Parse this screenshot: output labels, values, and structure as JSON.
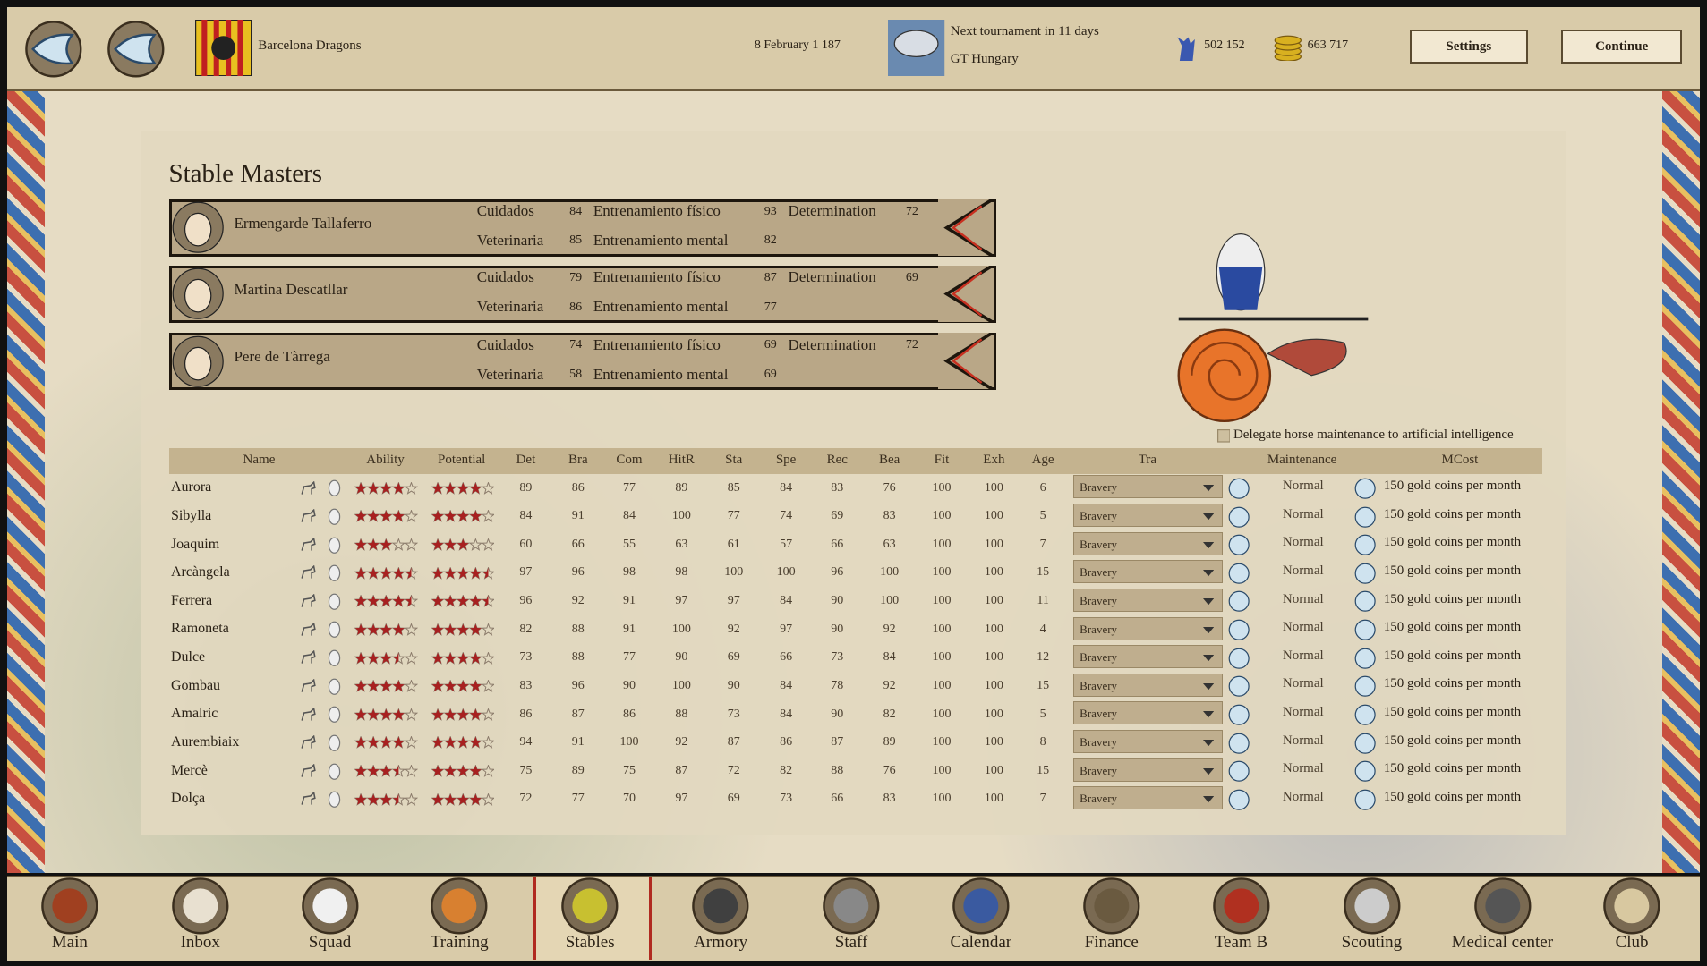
{
  "header": {
    "team": "Barcelona Dragons",
    "date": "8 February 1 187",
    "next_tournament": "Next tournament in 11 days",
    "tournament_name": "GT Hungary",
    "fans": "502 152",
    "gold": "663 717",
    "buttons": [
      "Settings",
      "Continue"
    ]
  },
  "stable_masters": {
    "title": "Stable Masters",
    "masters": [
      {
        "name": "Ermengarde Tallaferro",
        "stats": [
          {
            "label": "Cuidados",
            "value": 84
          },
          {
            "label": "Entrenamiento físico",
            "value": 93
          },
          {
            "label": "Determination",
            "value": 72
          },
          {
            "label": "Veterinaria",
            "value": 85
          },
          {
            "label": "Entrenamiento mental",
            "value": 82
          }
        ]
      },
      {
        "name": "Martina Descatllar",
        "stats": [
          {
            "label": "Cuidados",
            "value": 79
          },
          {
            "label": "Entrenamiento físico",
            "value": 87
          },
          {
            "label": "Determination",
            "value": 69
          },
          {
            "label": "Veterinaria",
            "value": 86
          },
          {
            "label": "Entrenamiento mental",
            "value": 77
          }
        ]
      },
      {
        "name": "Pere de Tàrrega",
        "stats": [
          {
            "label": "Cuidados",
            "value": 74
          },
          {
            "label": "Entrenamiento físico",
            "value": 69
          },
          {
            "label": "Determination",
            "value": 72
          },
          {
            "label": "Veterinaria",
            "value": 58
          },
          {
            "label": "Entrenamiento mental",
            "value": 69
          }
        ]
      }
    ]
  },
  "ai_delegate": "Delegate horse maintenance to artificial intelligence",
  "table": {
    "columns": [
      "Name",
      "Ability",
      "Potential",
      "Det",
      "Bra",
      "Com",
      "HitR",
      "Sta",
      "Spe",
      "Rec",
      "Bea",
      "Fit",
      "Exh",
      "Age",
      "Tra",
      "Maintenance",
      "MCost"
    ],
    "rows": [
      {
        "name": "Aurora",
        "ability": 4,
        "potential": 4,
        "stats": [
          89,
          86,
          77,
          89,
          85,
          84,
          83,
          76,
          100,
          100,
          6
        ],
        "training": "Bravery",
        "maintenance": "Normal",
        "cost": "150 gold coins per month"
      },
      {
        "name": "Sibylla",
        "ability": 4,
        "potential": 4,
        "stats": [
          84,
          91,
          84,
          100,
          77,
          74,
          69,
          83,
          100,
          100,
          5
        ],
        "training": "Bravery",
        "maintenance": "Normal",
        "cost": "150 gold coins per month"
      },
      {
        "name": "Joaquim",
        "ability": 3,
        "potential": 3,
        "stats": [
          60,
          66,
          55,
          63,
          61,
          57,
          66,
          63,
          100,
          100,
          7
        ],
        "training": "Bravery",
        "maintenance": "Normal",
        "cost": "150 gold coins per month"
      },
      {
        "name": "Arcàngela",
        "ability": 4.5,
        "potential": 4.5,
        "stats": [
          97,
          96,
          98,
          98,
          100,
          100,
          96,
          100,
          100,
          100,
          15
        ],
        "training": "Bravery",
        "maintenance": "Normal",
        "cost": "150 gold coins per month"
      },
      {
        "name": "Ferrera",
        "ability": 4.5,
        "potential": 4.5,
        "stats": [
          96,
          92,
          91,
          97,
          97,
          84,
          90,
          100,
          100,
          100,
          11
        ],
        "training": "Bravery",
        "maintenance": "Normal",
        "cost": "150 gold coins per month"
      },
      {
        "name": "Ramoneta",
        "ability": 4,
        "potential": 4,
        "stats": [
          82,
          88,
          91,
          100,
          92,
          97,
          90,
          92,
          100,
          100,
          4
        ],
        "training": "Bravery",
        "maintenance": "Normal",
        "cost": "150 gold coins per month"
      },
      {
        "name": "Dulce",
        "ability": 3.5,
        "potential": 4,
        "stats": [
          73,
          88,
          77,
          90,
          69,
          66,
          73,
          84,
          100,
          100,
          12
        ],
        "training": "Bravery",
        "maintenance": "Normal",
        "cost": "150 gold coins per month"
      },
      {
        "name": "Gombau",
        "ability": 4,
        "potential": 4,
        "stats": [
          83,
          96,
          90,
          100,
          90,
          84,
          78,
          92,
          100,
          100,
          15
        ],
        "training": "Bravery",
        "maintenance": "Normal",
        "cost": "150 gold coins per month"
      },
      {
        "name": "Amalric",
        "ability": 4,
        "potential": 4,
        "stats": [
          86,
          87,
          86,
          88,
          73,
          84,
          90,
          82,
          100,
          100,
          5
        ],
        "training": "Bravery",
        "maintenance": "Normal",
        "cost": "150 gold coins per month"
      },
      {
        "name": "Aurembiaix",
        "ability": 4,
        "potential": 4,
        "stats": [
          94,
          91,
          100,
          92,
          87,
          86,
          87,
          89,
          100,
          100,
          8
        ],
        "training": "Bravery",
        "maintenance": "Normal",
        "cost": "150 gold coins per month"
      },
      {
        "name": "Mercè",
        "ability": 3.5,
        "potential": 4,
        "stats": [
          75,
          89,
          75,
          87,
          72,
          82,
          88,
          76,
          100,
          100,
          15
        ],
        "training": "Bravery",
        "maintenance": "Normal",
        "cost": "150 gold coins per month"
      },
      {
        "name": "Dolça",
        "ability": 3.5,
        "potential": 4,
        "stats": [
          72,
          77,
          70,
          97,
          69,
          73,
          66,
          83,
          100,
          100,
          7
        ],
        "training": "Bravery",
        "maintenance": "Normal",
        "cost": "150 gold coins per month"
      }
    ]
  },
  "nav": {
    "items": [
      "Main",
      "Inbox",
      "Squad",
      "Training",
      "Stables",
      "Armory",
      "Staff",
      "Calendar",
      "Finance",
      "Team B",
      "Scouting",
      "Medical center",
      "Club"
    ],
    "active": 4
  }
}
